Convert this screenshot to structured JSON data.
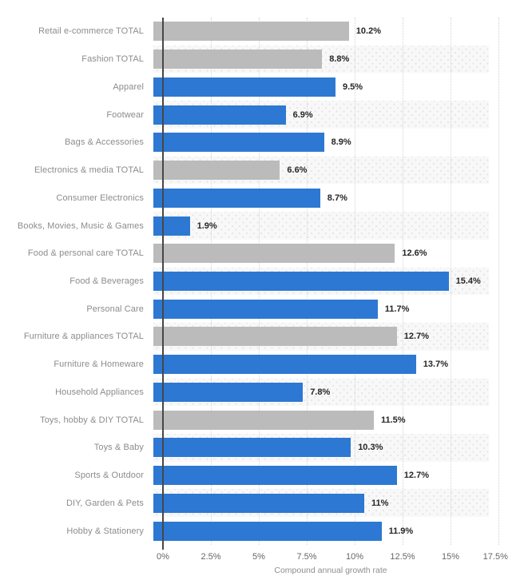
{
  "chart_data": {
    "type": "bar",
    "orientation": "horizontal",
    "title": "",
    "xlabel": "Compound annual growth rate",
    "xlim": [
      0,
      17.5
    ],
    "grid": true,
    "x_ticks": [
      "0%",
      "2.5%",
      "5%",
      "7.5%",
      "10%",
      "12.5%",
      "15%",
      "17.5%"
    ],
    "x_tick_values": [
      0,
      2.5,
      5,
      7.5,
      10,
      12.5,
      15,
      17.5
    ],
    "colors": {
      "total_bar": "#bbbbbb",
      "segment_bar": "#2d78d2",
      "axis_line": "#474747",
      "gridline": "#d4d4d4",
      "category_label": "#8c8c8c",
      "value_label": "#262626"
    },
    "rows": [
      {
        "category": "Retail e-commerce TOTAL",
        "value": 10.2,
        "label": "10.2%",
        "kind": "total"
      },
      {
        "category": "Fashion TOTAL",
        "value": 8.8,
        "label": "8.8%",
        "kind": "total"
      },
      {
        "category": "Apparel",
        "value": 9.5,
        "label": "9.5%",
        "kind": "segment"
      },
      {
        "category": "Footwear",
        "value": 6.9,
        "label": "6.9%",
        "kind": "segment"
      },
      {
        "category": "Bags & Accessories",
        "value": 8.9,
        "label": "8.9%",
        "kind": "segment"
      },
      {
        "category": "Electronics & media TOTAL",
        "value": 6.6,
        "label": "6.6%",
        "kind": "total"
      },
      {
        "category": "Consumer Electronics",
        "value": 8.7,
        "label": "8.7%",
        "kind": "segment"
      },
      {
        "category": "Books, Movies, Music & Games",
        "value": 1.9,
        "label": "1.9%",
        "kind": "segment"
      },
      {
        "category": "Food & personal care TOTAL",
        "value": 12.6,
        "label": "12.6%",
        "kind": "total"
      },
      {
        "category": "Food & Beverages",
        "value": 15.4,
        "label": "15.4%",
        "kind": "segment"
      },
      {
        "category": "Personal Care",
        "value": 11.7,
        "label": "11.7%",
        "kind": "segment"
      },
      {
        "category": "Furniture & appliances TOTAL",
        "value": 12.7,
        "label": "12.7%",
        "kind": "total"
      },
      {
        "category": "Furniture & Homeware",
        "value": 13.7,
        "label": "13.7%",
        "kind": "segment"
      },
      {
        "category": "Household Appliances",
        "value": 7.8,
        "label": "7.8%",
        "kind": "segment"
      },
      {
        "category": "Toys, hobby & DIY TOTAL",
        "value": 11.5,
        "label": "11.5%",
        "kind": "total"
      },
      {
        "category": "Toys & Baby",
        "value": 10.3,
        "label": "10.3%",
        "kind": "segment"
      },
      {
        "category": "Sports & Outdoor",
        "value": 12.7,
        "label": "12.7%",
        "kind": "segment"
      },
      {
        "category": "DIY, Garden & Pets",
        "value": 11,
        "label": "11%",
        "kind": "segment"
      },
      {
        "category": "Hobby & Stationery",
        "value": 11.9,
        "label": "11.9%",
        "kind": "segment"
      }
    ]
  }
}
